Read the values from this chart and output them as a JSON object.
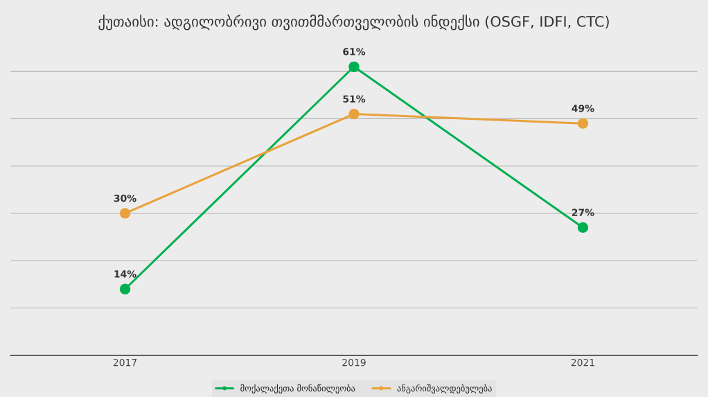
{
  "chart_data": {
    "type": "line",
    "title": "ქუთაისი: ადგილობრივი თვითმმართველობის ინდექსი (OSGF, IDFI, CTC)",
    "categories": [
      "2017",
      "2019",
      "2021"
    ],
    "series": [
      {
        "name": "მოქალაქეთა მონაწილეობა",
        "color": "#00b050",
        "values": [
          14,
          61,
          27
        ],
        "value_labels": [
          "14%",
          "61%",
          "27%"
        ]
      },
      {
        "name": "ანგარიშვალდებულება",
        "color": "#e9a23b",
        "values": [
          30,
          51,
          49
        ],
        "value_labels": [
          "30%",
          "51%",
          "49%"
        ]
      }
    ],
    "grid": "y",
    "legend": "bottom",
    "marker": "circle",
    "line_style": "solid",
    "tick_labels": "x"
  }
}
